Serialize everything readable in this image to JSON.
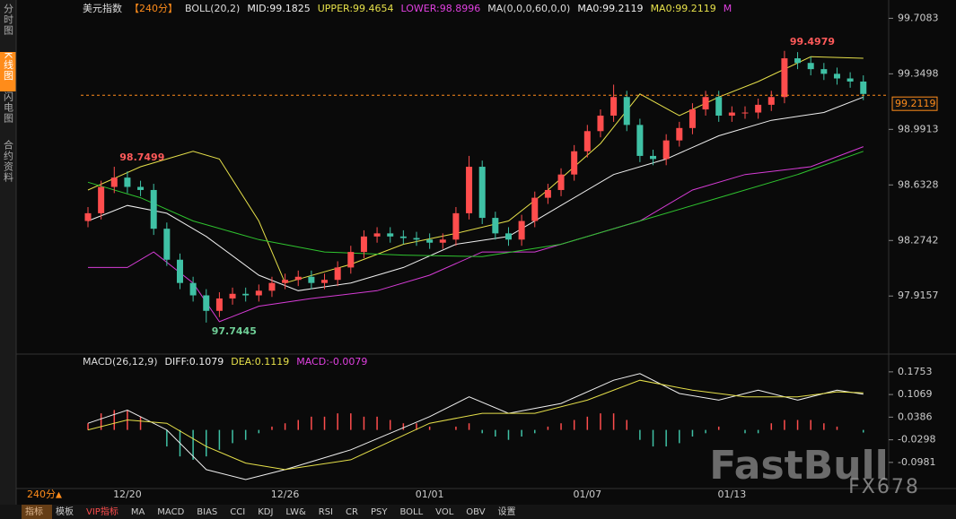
{
  "sidebar": [
    "分时图",
    "K线图",
    "闪电图",
    "合约资料"
  ],
  "header": [
    {
      "text": "美元指数",
      "color": "#dddddd"
    },
    {
      "text": "【240分】",
      "color": "#ff8c1a"
    },
    {
      "text": "BOLL(20,2)",
      "color": "#dddddd"
    },
    {
      "text": "MID:99.1825",
      "color": "#eeeeee"
    },
    {
      "text": "UPPER:99.4654",
      "color": "#e6e04a"
    },
    {
      "text": "LOWER:98.8996",
      "color": "#e040e0"
    },
    {
      "text": "MA(0,0,0,60,0,0)",
      "color": "#dddddd"
    },
    {
      "text": "MA0:99.2119",
      "color": "#eeeeee"
    },
    {
      "text": "MA0:99.2119",
      "color": "#e6e04a"
    },
    {
      "text": "M",
      "color": "#e040e0"
    }
  ],
  "macd_header": [
    {
      "text": "MACD(26,12,9)",
      "color": "#dddddd"
    },
    {
      "text": "DIFF:0.1079",
      "color": "#eeeeee"
    },
    {
      "text": "DEA:0.1119",
      "color": "#e6e04a"
    },
    {
      "text": "MACD:-0.0079",
      "color": "#e040e0"
    }
  ],
  "toolbar": {
    "period": "240分",
    "items": [
      "指标",
      "模板",
      "VIP指标",
      "MA",
      "MACD",
      "BIAS",
      "CCI",
      "KDJ",
      "LW&",
      "RSI",
      "CR",
      "PSY",
      "BOLL",
      "VOL",
      "OBV",
      "设置"
    ]
  },
  "watermark": "FastBull",
  "watermark_sub": "FX678",
  "chart_data": [
    {
      "type": "candlestick",
      "ylim": [
        97.57,
        99.78
      ],
      "yticks": [
        99.7083,
        99.3498,
        98.9913,
        98.6328,
        98.2742,
        97.9157
      ],
      "last": 99.2119,
      "up_color": "#ff4d4d",
      "down_color": "#3fc1a5",
      "opens": [
        98.4,
        98.45,
        98.62,
        98.68,
        98.62,
        98.6,
        98.35,
        98.15,
        98.0,
        97.92,
        97.82,
        97.9,
        97.93,
        97.92,
        97.95,
        98.0,
        98.02,
        98.04,
        98.0,
        98.02,
        98.1,
        98.2,
        98.3,
        98.32,
        98.3,
        98.29,
        98.28,
        98.26,
        98.28,
        98.45,
        98.75,
        98.42,
        98.32,
        98.28,
        98.4,
        98.55,
        98.6,
        98.7,
        98.85,
        98.98,
        99.08,
        99.2,
        99.02,
        98.82,
        98.8,
        98.92,
        99.0,
        99.12,
        99.2,
        99.08,
        99.1,
        99.1,
        99.15,
        99.2,
        99.45,
        99.42,
        99.38,
        99.35,
        99.32,
        99.3
      ],
      "highs": [
        98.49,
        98.66,
        98.7499,
        98.72,
        98.66,
        98.64,
        98.39,
        98.19,
        98.04,
        97.96,
        97.94,
        97.97,
        97.97,
        97.99,
        98.04,
        98.06,
        98.08,
        98.08,
        98.06,
        98.14,
        98.24,
        98.34,
        98.36,
        98.36,
        98.34,
        98.33,
        98.32,
        98.32,
        98.49,
        98.82,
        98.79,
        98.46,
        98.36,
        98.44,
        98.59,
        98.64,
        98.74,
        98.89,
        99.02,
        99.12,
        99.28,
        99.24,
        99.06,
        98.86,
        98.96,
        99.04,
        99.16,
        99.24,
        99.24,
        99.14,
        99.14,
        99.19,
        99.24,
        99.4979,
        99.49,
        99.46,
        99.42,
        99.39,
        99.36,
        99.34
      ],
      "lows": [
        98.36,
        98.41,
        98.58,
        98.58,
        98.56,
        98.31,
        98.11,
        97.96,
        97.88,
        97.7445,
        97.78,
        97.86,
        97.88,
        97.88,
        97.91,
        97.96,
        97.98,
        97.96,
        97.96,
        97.98,
        98.06,
        98.16,
        98.26,
        98.26,
        98.25,
        98.24,
        98.22,
        98.22,
        98.24,
        98.41,
        98.38,
        98.28,
        98.24,
        98.24,
        98.36,
        98.51,
        98.56,
        98.66,
        98.81,
        98.94,
        99.04,
        98.98,
        98.78,
        98.76,
        98.76,
        98.88,
        98.96,
        99.08,
        99.04,
        99.04,
        99.06,
        99.06,
        99.11,
        99.16,
        99.38,
        99.34,
        99.31,
        99.28,
        99.26,
        99.18
      ],
      "closes": [
        98.45,
        98.62,
        98.68,
        98.62,
        98.6,
        98.35,
        98.15,
        98.0,
        97.92,
        97.82,
        97.9,
        97.93,
        97.92,
        97.95,
        98.0,
        98.02,
        98.04,
        98.0,
        98.02,
        98.1,
        98.2,
        98.3,
        98.32,
        98.3,
        98.29,
        98.28,
        98.26,
        98.28,
        98.45,
        98.75,
        98.42,
        98.32,
        98.28,
        98.4,
        98.55,
        98.6,
        98.7,
        98.85,
        98.98,
        99.08,
        99.2,
        99.02,
        98.82,
        98.8,
        98.92,
        99.0,
        99.12,
        99.2,
        99.08,
        99.1,
        99.1,
        99.15,
        99.2,
        99.45,
        99.42,
        99.38,
        99.35,
        99.32,
        99.3,
        99.22
      ],
      "series": [
        {
          "color": "#e6e04a",
          "x": [
            0,
            4,
            8,
            10,
            13,
            15,
            20,
            24,
            28,
            32,
            35,
            39,
            42,
            45,
            48,
            51,
            55,
            59
          ],
          "values": [
            98.6,
            98.75,
            98.85,
            98.8,
            98.4,
            98.0,
            98.12,
            98.25,
            98.32,
            98.4,
            98.6,
            98.9,
            99.22,
            99.08,
            99.2,
            99.3,
            99.46,
            99.45
          ]
        },
        {
          "color": "#f0f0f0",
          "x": [
            0,
            3,
            6,
            9,
            13,
            16,
            20,
            24,
            28,
            32,
            36,
            40,
            44,
            48,
            52,
            56,
            59
          ],
          "values": [
            98.4,
            98.5,
            98.45,
            98.3,
            98.05,
            97.95,
            98.0,
            98.1,
            98.25,
            98.3,
            98.5,
            98.7,
            98.8,
            98.95,
            99.05,
            99.1,
            99.2
          ]
        },
        {
          "color": "#d63cd6",
          "x": [
            0,
            3,
            5,
            8,
            10,
            13,
            17,
            22,
            26,
            30,
            34,
            38,
            42,
            46,
            50,
            55,
            59
          ],
          "values": [
            98.1,
            98.1,
            98.2,
            98.0,
            97.75,
            97.85,
            97.9,
            97.95,
            98.05,
            98.2,
            98.2,
            98.3,
            98.4,
            98.6,
            98.7,
            98.75,
            98.88
          ]
        },
        {
          "color": "#2fc42f",
          "x": [
            0,
            4,
            8,
            13,
            18,
            24,
            30,
            36,
            42,
            48,
            54,
            59
          ],
          "values": [
            98.65,
            98.55,
            98.4,
            98.28,
            98.2,
            98.18,
            98.17,
            98.25,
            98.4,
            98.55,
            98.7,
            98.85
          ]
        }
      ]
    },
    {
      "type": "macd",
      "ylim": [
        -0.177,
        0.202
      ],
      "yticks": [
        0.1753,
        0.1069,
        0.0386,
        -0.0298,
        -0.0981
      ],
      "up_color": "#ff4d4d",
      "down_color": "#3fc1a5",
      "categories": [
        null,
        null,
        null,
        "12/20",
        null,
        null,
        null,
        null,
        null,
        null,
        null,
        null,
        null,
        null,
        null,
        "12/26",
        null,
        null,
        null,
        null,
        null,
        null,
        null,
        null,
        null,
        null,
        "01/01",
        null,
        null,
        null,
        null,
        null,
        null,
        null,
        null,
        null,
        null,
        null,
        "01/07",
        null,
        null,
        null,
        null,
        null,
        null,
        null,
        null,
        null,
        null,
        "01/13",
        null,
        null,
        null,
        null,
        null,
        null,
        null,
        null,
        null,
        null
      ],
      "values": [
        0.02,
        0.05,
        0.06,
        0.06,
        0.04,
        0.0,
        -0.05,
        -0.08,
        -0.09,
        -0.08,
        -0.06,
        -0.04,
        -0.03,
        -0.01,
        0.01,
        0.02,
        0.03,
        0.04,
        0.04,
        0.05,
        0.05,
        0.04,
        0.04,
        0.03,
        0.02,
        0.02,
        0.01,
        0.0,
        0.01,
        0.02,
        -0.01,
        -0.02,
        -0.03,
        -0.02,
        -0.01,
        0.01,
        0.02,
        0.03,
        0.04,
        0.05,
        0.05,
        0.03,
        -0.03,
        -0.05,
        -0.05,
        -0.04,
        -0.02,
        -0.01,
        0.01,
        0.0,
        -0.01,
        -0.01,
        0.02,
        0.03,
        0.03,
        0.03,
        0.02,
        0.01,
        0.0,
        -0.0079
      ],
      "series": [
        {
          "color": "#f0f0f0",
          "x": [
            0,
            3,
            6,
            9,
            12,
            15,
            20,
            26,
            29,
            32,
            36,
            40,
            42,
            45,
            48,
            51,
            54,
            57,
            59
          ],
          "values": [
            0.02,
            0.06,
            0.0,
            -0.12,
            -0.15,
            -0.12,
            -0.06,
            0.04,
            0.1,
            0.05,
            0.08,
            0.15,
            0.17,
            0.11,
            0.09,
            0.12,
            0.09,
            0.12,
            0.1079
          ]
        },
        {
          "color": "#e6e04a",
          "x": [
            0,
            3,
            6,
            9,
            12,
            15,
            20,
            26,
            30,
            34,
            38,
            42,
            46,
            50,
            54,
            57,
            59
          ],
          "values": [
            0.0,
            0.03,
            0.02,
            -0.05,
            -0.1,
            -0.12,
            -0.09,
            0.02,
            0.05,
            0.05,
            0.09,
            0.15,
            0.12,
            0.1,
            0.1,
            0.115,
            0.1119
          ]
        }
      ]
    }
  ]
}
